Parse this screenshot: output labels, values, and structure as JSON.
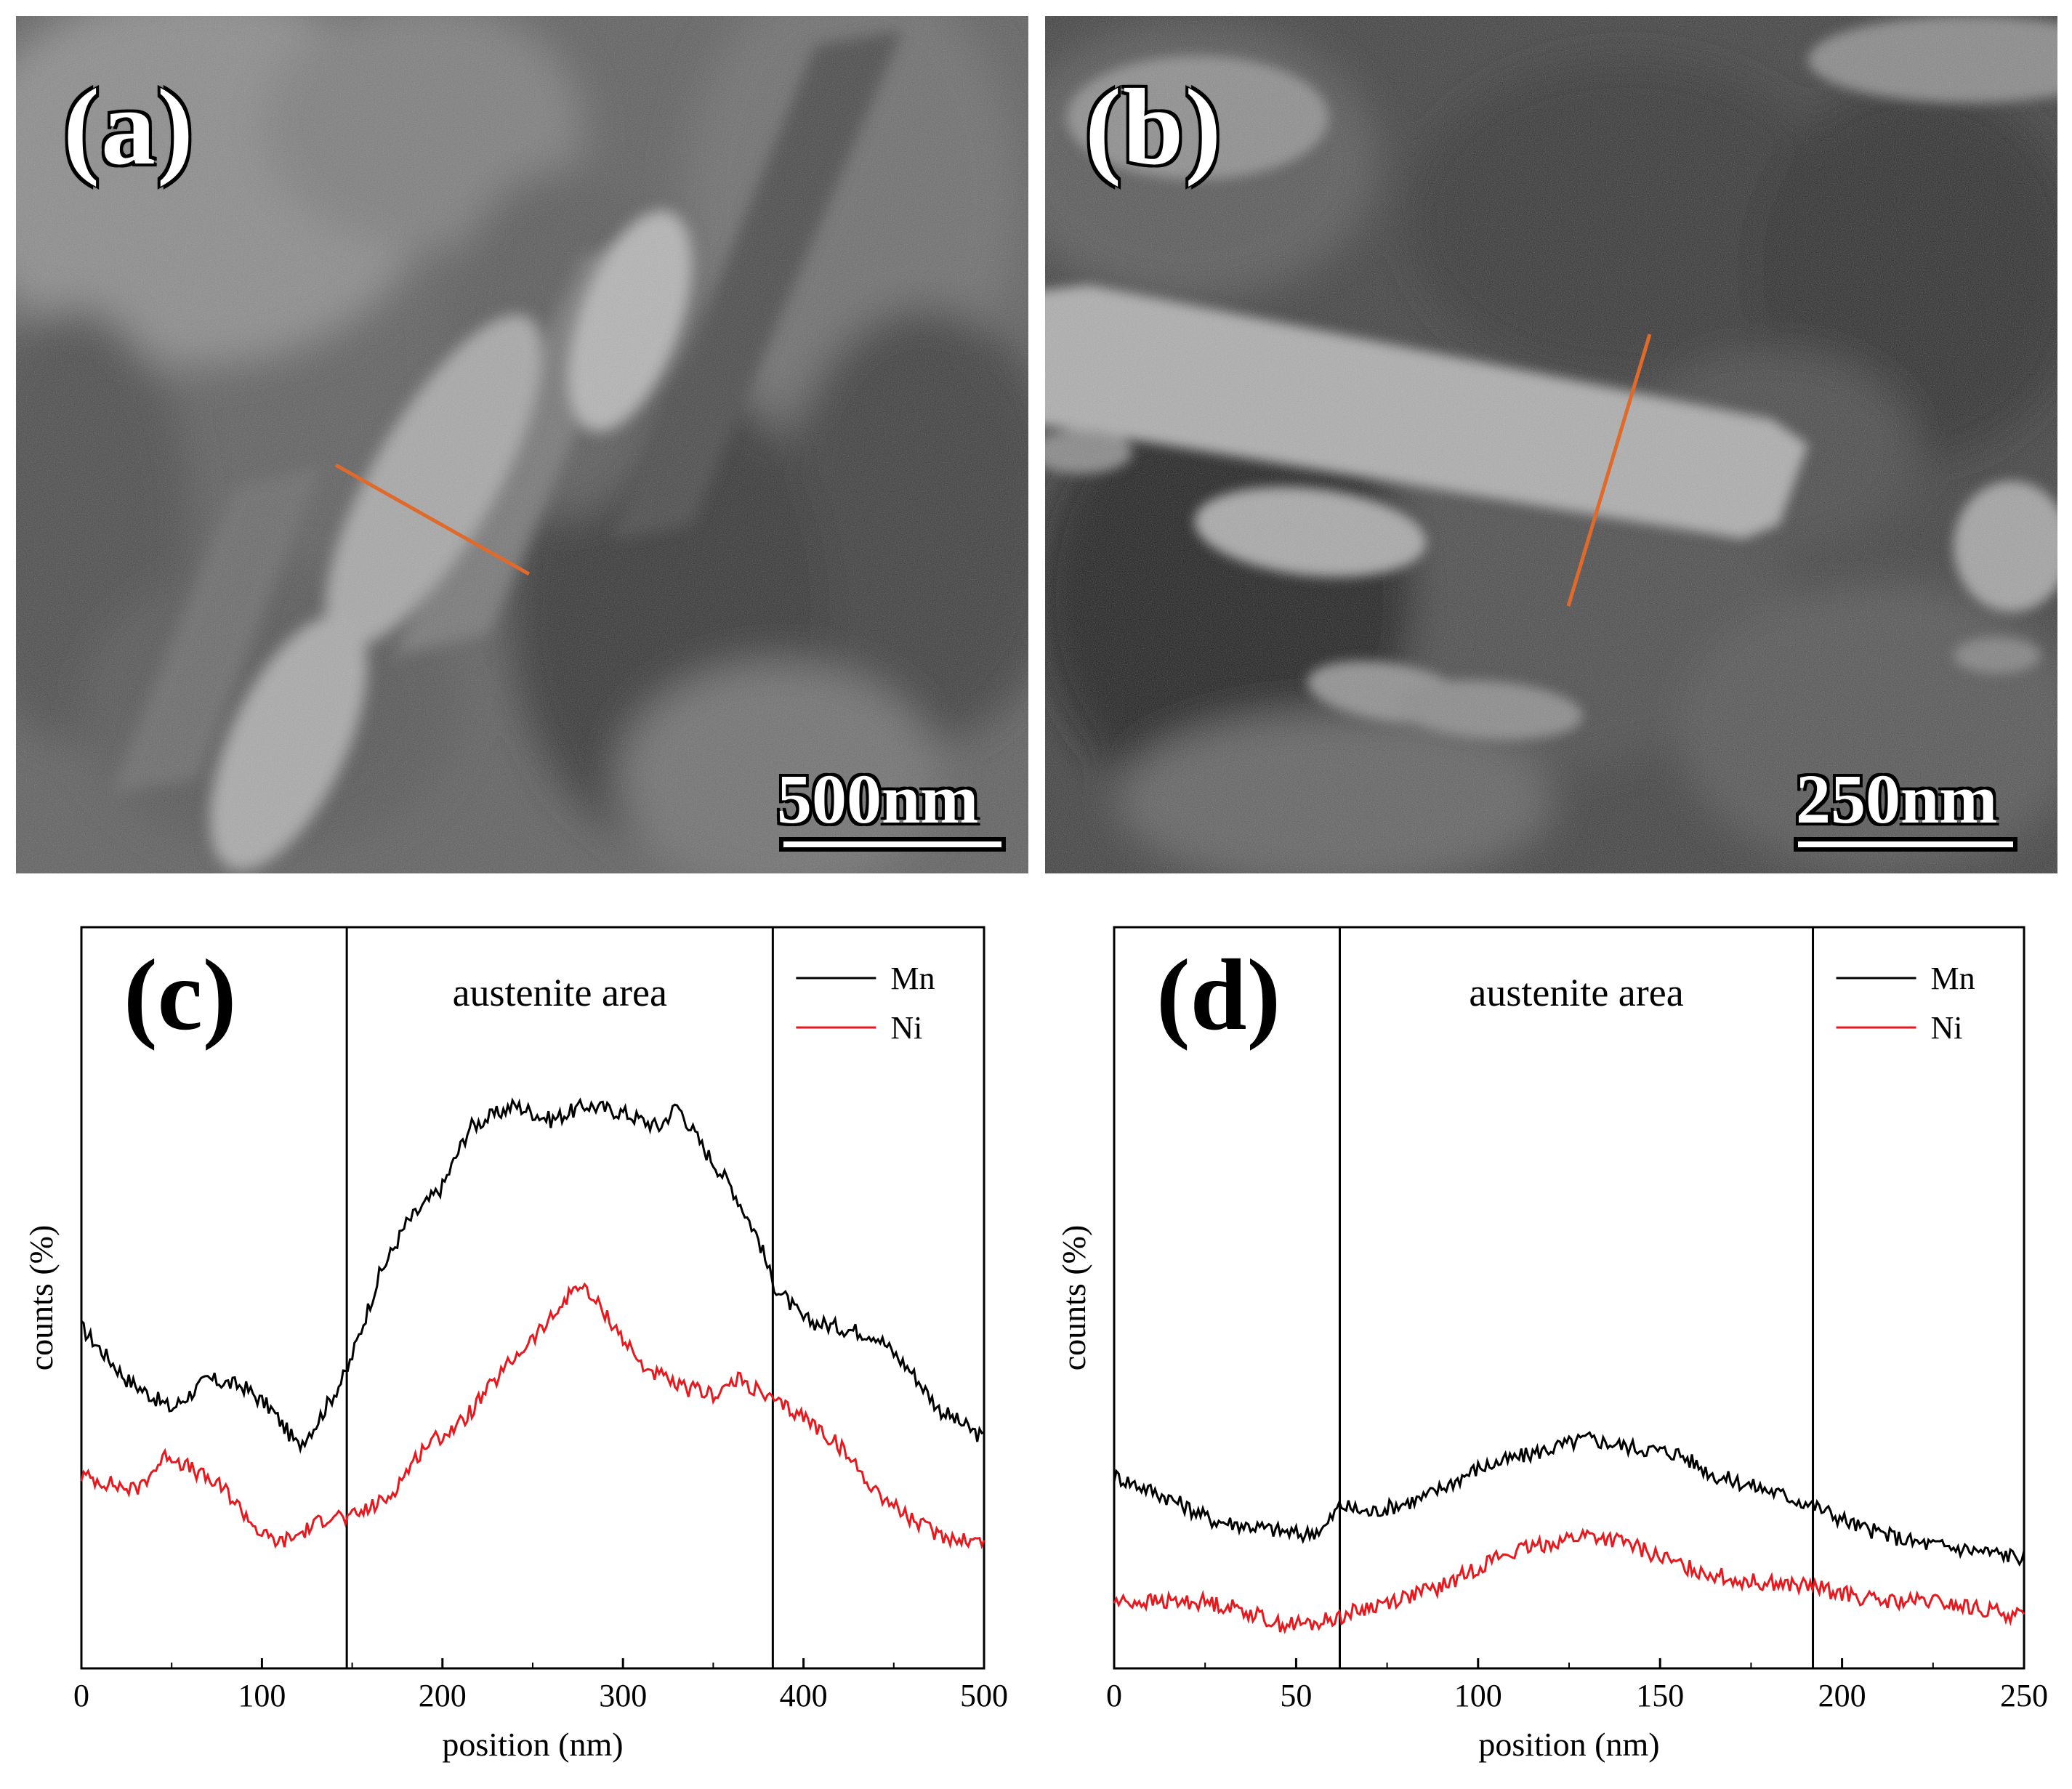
{
  "panels": {
    "a": {
      "label": "(a)",
      "scale_text": "500nm"
    },
    "b": {
      "label": "(b)",
      "scale_text": "250nm"
    }
  },
  "line_scan_color": "#e06a2c",
  "chart_data": [
    {
      "type": "line",
      "panel_label": "(c)",
      "annotation": "austenite area",
      "xlabel": "position (nm)",
      "ylabel": "counts (%)",
      "xlim": [
        0,
        500
      ],
      "ylim": [
        0,
        100
      ],
      "x_ticks": [
        0,
        100,
        200,
        300,
        400,
        500
      ],
      "y_ticks_labeled": false,
      "grid": false,
      "legend_position": "top-right",
      "region_boundaries_x": [
        147,
        383
      ],
      "series": [
        {
          "name": "Mn",
          "color": "#000000",
          "x": [
            0,
            25,
            50,
            70,
            90,
            105,
            120,
            130,
            147,
            165,
            180,
            200,
            215,
            240,
            260,
            280,
            300,
            320,
            330,
            345,
            360,
            375,
            383,
            400,
            420,
            440,
            460,
            475,
            500
          ],
          "y": [
            46,
            39,
            35,
            39,
            38,
            35,
            30,
            33,
            40,
            53,
            60,
            65,
            73,
            76,
            74,
            76,
            75,
            73,
            76,
            70,
            65,
            58,
            52,
            47,
            46,
            45,
            40,
            35,
            31
          ]
        },
        {
          "name": "Ni",
          "color": "#e8191e",
          "x": [
            0,
            30,
            48,
            60,
            80,
            100,
            110,
            120,
            140,
            147,
            170,
            190,
            210,
            240,
            260,
            275,
            290,
            310,
            330,
            350,
            365,
            383,
            400,
            420,
            440,
            460,
            475,
            500
          ],
          "y": [
            26,
            24,
            29,
            27,
            24,
            18,
            17,
            18,
            21,
            20,
            23,
            30,
            33,
            42,
            47,
            52,
            48,
            41,
            38,
            37,
            39,
            36,
            34,
            30,
            24,
            20,
            18,
            17
          ]
        }
      ]
    },
    {
      "type": "line",
      "panel_label": "(d)",
      "annotation": "austenite area",
      "xlabel": "position (nm)",
      "ylabel": "counts (%)",
      "xlim": [
        0,
        250
      ],
      "ylim": [
        0,
        100
      ],
      "x_ticks": [
        0,
        50,
        100,
        150,
        200,
        250
      ],
      "y_ticks_labeled": false,
      "grid": false,
      "legend_position": "top-right",
      "region_boundaries_x": [
        62,
        192
      ],
      "series": [
        {
          "name": "Mn",
          "color": "#000000",
          "x": [
            0,
            15,
            27,
            40,
            52,
            58,
            62,
            70,
            85,
            100,
            115,
            130,
            140,
            155,
            165,
            180,
            192,
            205,
            220,
            235,
            250
          ],
          "y": [
            26,
            23,
            20,
            19,
            18,
            19,
            22,
            21,
            23,
            27,
            29,
            31,
            30,
            29,
            26,
            24,
            22,
            19,
            17,
            16,
            15
          ]
        },
        {
          "name": "Ni",
          "color": "#e8191e",
          "x": [
            0,
            25,
            35,
            45,
            55,
            62,
            75,
            90,
            105,
            120,
            130,
            140,
            155,
            170,
            192,
            210,
            225,
            250
          ],
          "y": [
            9,
            9,
            8,
            6,
            6,
            7,
            9,
            11,
            15,
            17,
            18,
            17,
            14,
            12,
            11,
            9,
            9,
            7
          ]
        }
      ]
    }
  ]
}
